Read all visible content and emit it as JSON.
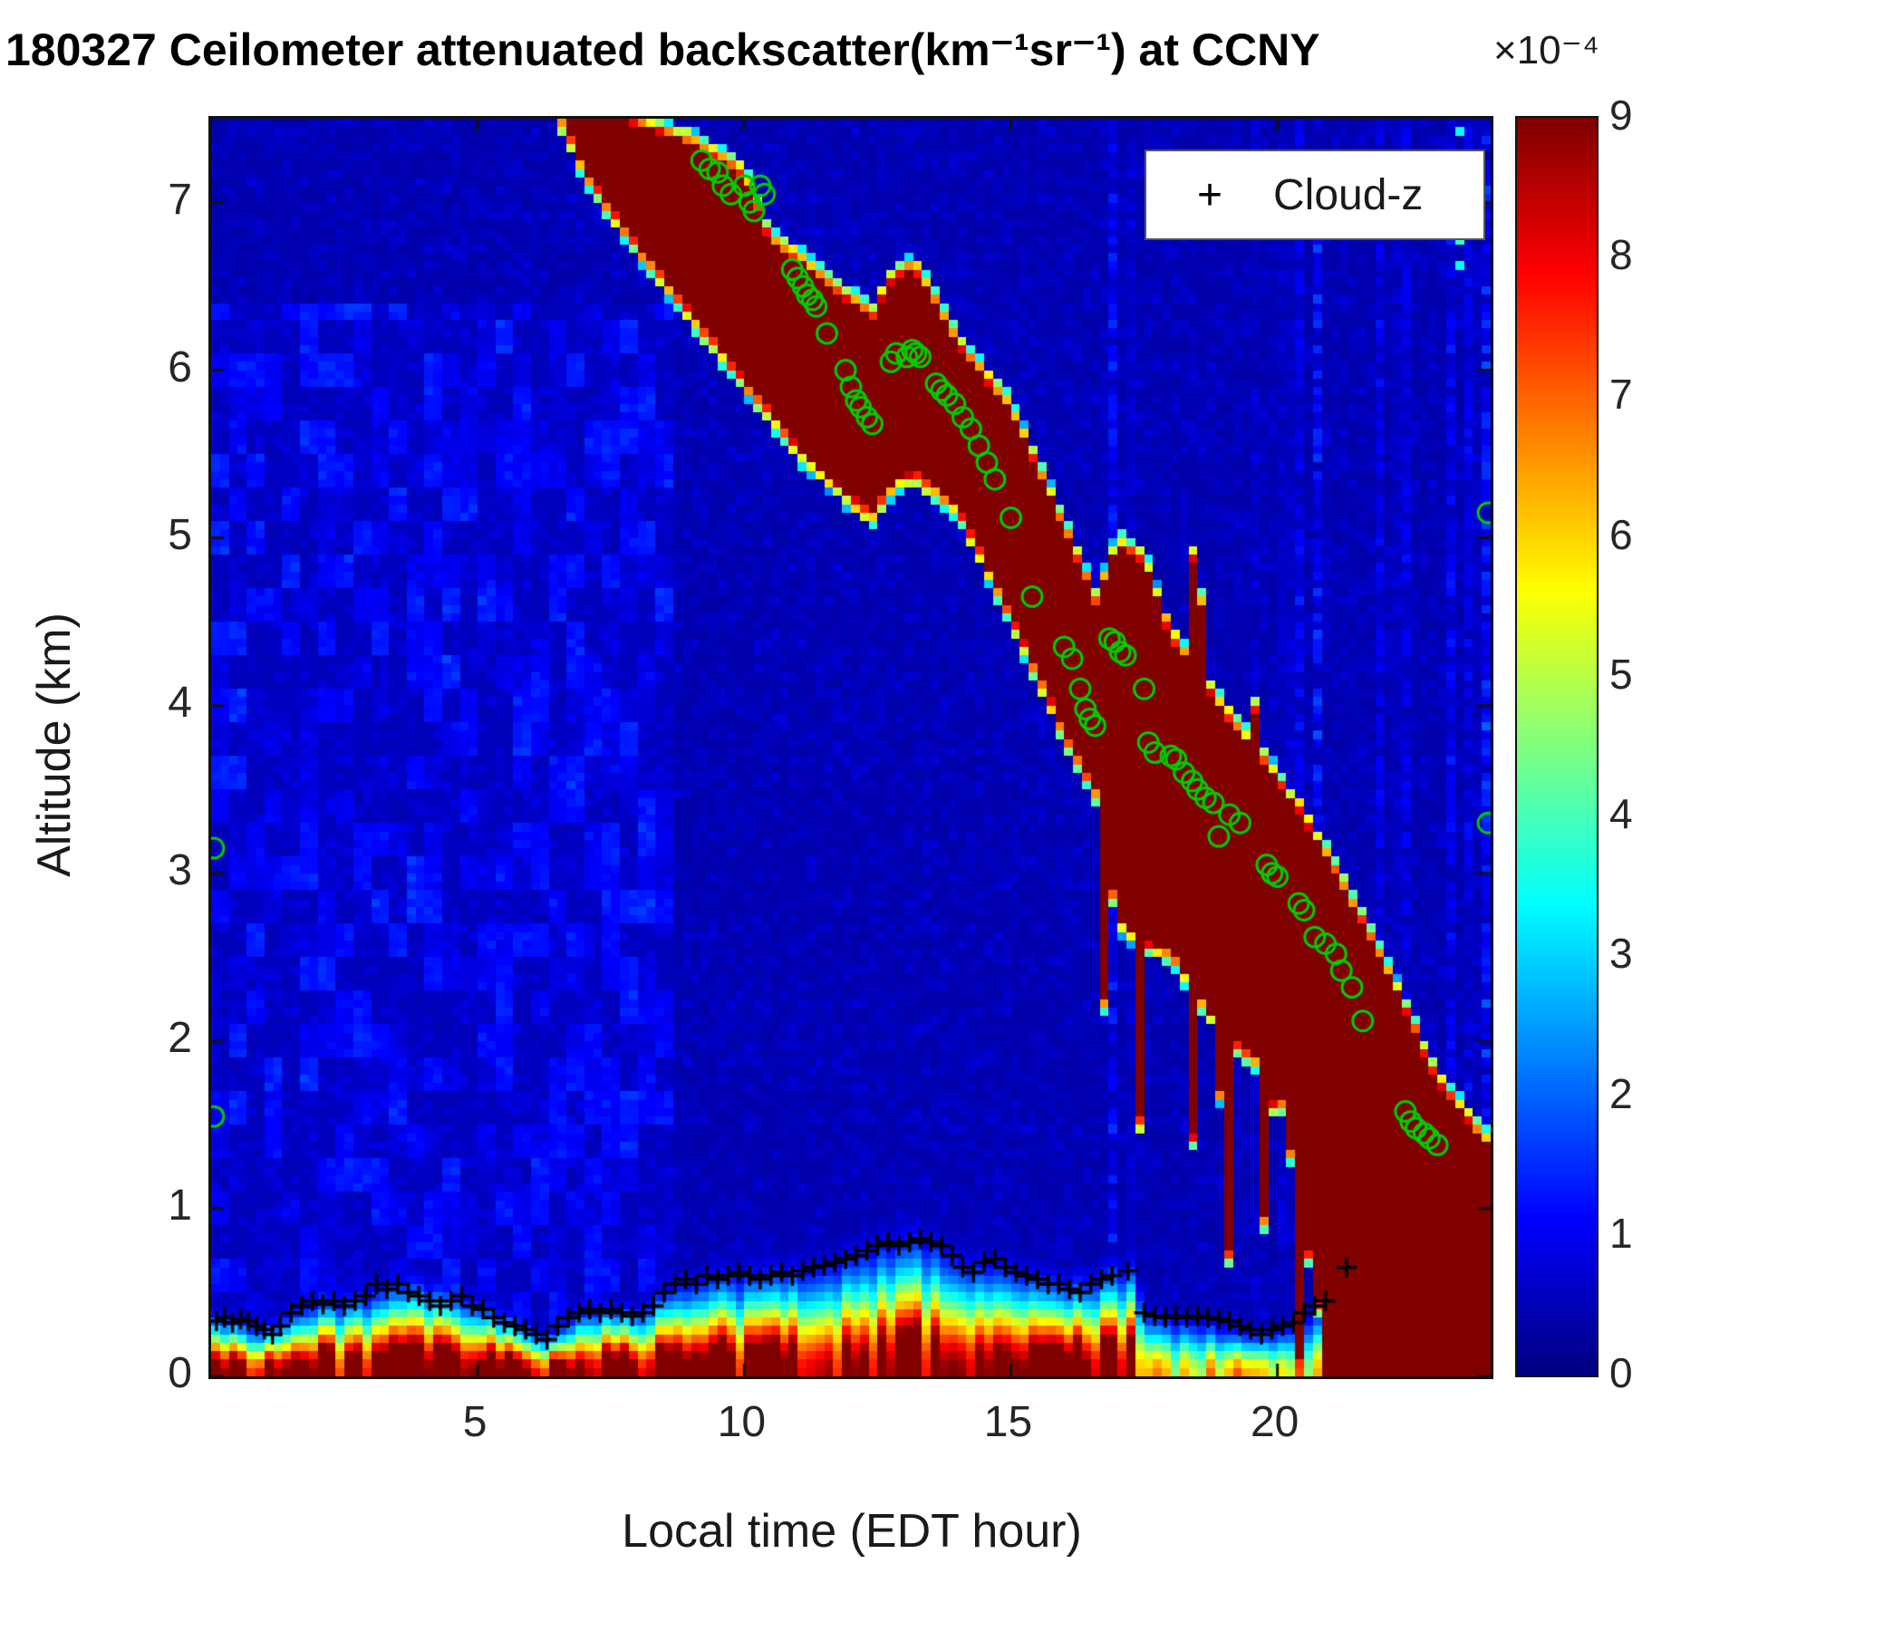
{
  "figure": {
    "title": "180327 Ceilometer attenuated backscatter(km⁻¹sr⁻¹) at CCNY",
    "colorbar_scale_label": "×10⁻⁴",
    "xlabel": "Local time (EDT hour)",
    "ylabel": "Altitude (km)"
  },
  "legend": {
    "marker": "+",
    "label": "Cloud-z"
  },
  "chart_data": {
    "type": "heatmap",
    "title": "180327 Ceilometer attenuated backscatter(km⁻¹sr⁻¹) at CCNY",
    "xlabel": "Local time (EDT hour)",
    "ylabel": "Altitude (km)",
    "x_range": [
      0,
      24
    ],
    "y_range": [
      0,
      7.5
    ],
    "x_ticks": [
      5,
      10,
      15,
      20
    ],
    "y_ticks": [
      0,
      1,
      2,
      3,
      4,
      5,
      6,
      7
    ],
    "grid": false,
    "legend_position": "top-right-inside",
    "colorbar": {
      "range": [
        0,
        9
      ],
      "ticks": [
        0,
        1,
        2,
        3,
        4,
        5,
        6,
        7,
        8,
        9
      ],
      "scale_label": "×10⁻⁴",
      "colormap": "jet"
    },
    "background_value": 0.5,
    "cloud_band": {
      "comment": "descending optically-thick cloud layer, saturated backscatter value 9e-4",
      "value": 9,
      "hours": [
        6.6,
        7.0,
        8.0,
        9.0,
        10.0,
        10.5,
        11.0,
        12.0,
        12.4,
        12.8,
        13.2,
        14.0,
        15.0,
        16.0,
        16.6,
        17.0,
        17.5,
        18.0,
        19.0,
        20.0,
        21.0,
        22.0,
        23.0,
        24.0
      ],
      "top_km": [
        7.6,
        7.6,
        7.45,
        7.35,
        7.15,
        6.75,
        6.65,
        6.4,
        6.3,
        6.55,
        6.6,
        6.15,
        5.75,
        5.05,
        4.6,
        4.95,
        4.85,
        4.4,
        3.95,
        3.55,
        3.05,
        2.45,
        1.75,
        1.35
      ],
      "bottom_km": [
        7.5,
        7.2,
        6.75,
        6.35,
        5.95,
        5.75,
        5.55,
        5.25,
        5.15,
        5.35,
        5.4,
        5.2,
        4.55,
        3.85,
        3.5,
        2.75,
        2.6,
        2.55,
        2.05,
        1.8,
        0.0,
        0.0,
        0.0,
        0.0
      ]
    },
    "boundary_layer": {
      "comment": "near-surface aerosol layer top height",
      "surface_value": 9,
      "hours": [
        0,
        1,
        2,
        3,
        3.8,
        5,
        6,
        6.4,
        7,
        8,
        8.6,
        9.5,
        10.5,
        11.5,
        12.5,
        13.4,
        14,
        15,
        16,
        16.8,
        17.3,
        17.6,
        18.5,
        19.5,
        20.2,
        20.8,
        21.4,
        22,
        24
      ],
      "height_km": [
        0.38,
        0.3,
        0.45,
        0.5,
        0.57,
        0.45,
        0.3,
        0.25,
        0.42,
        0.4,
        0.52,
        0.6,
        0.62,
        0.67,
        0.78,
        0.82,
        0.7,
        0.65,
        0.55,
        0.62,
        0.66,
        0.4,
        0.37,
        0.28,
        0.33,
        0.45,
        0.65,
        0.5,
        0.5
      ]
    },
    "cloud_z_markers": [
      [
        0.1,
        0.33
      ],
      [
        0.25,
        0.35
      ],
      [
        0.4,
        0.32
      ],
      [
        0.55,
        0.34
      ],
      [
        0.7,
        0.33
      ],
      [
        0.85,
        0.3
      ],
      [
        1.0,
        0.28
      ],
      [
        1.15,
        0.25
      ],
      [
        1.3,
        0.3
      ],
      [
        1.5,
        0.38
      ],
      [
        1.7,
        0.42
      ],
      [
        1.9,
        0.45
      ],
      [
        2.1,
        0.43
      ],
      [
        2.3,
        0.45
      ],
      [
        2.5,
        0.42
      ],
      [
        2.7,
        0.45
      ],
      [
        2.9,
        0.48
      ],
      [
        3.1,
        0.55
      ],
      [
        3.3,
        0.52
      ],
      [
        3.5,
        0.55
      ],
      [
        3.7,
        0.5
      ],
      [
        3.9,
        0.48
      ],
      [
        4.1,
        0.45
      ],
      [
        4.3,
        0.42
      ],
      [
        4.5,
        0.45
      ],
      [
        4.7,
        0.48
      ],
      [
        4.9,
        0.42
      ],
      [
        5.1,
        0.4
      ],
      [
        5.3,
        0.35
      ],
      [
        5.5,
        0.32
      ],
      [
        5.7,
        0.3
      ],
      [
        5.9,
        0.28
      ],
      [
        6.1,
        0.25
      ],
      [
        6.3,
        0.22
      ],
      [
        6.5,
        0.3
      ],
      [
        6.7,
        0.35
      ],
      [
        6.9,
        0.38
      ],
      [
        7.1,
        0.4
      ],
      [
        7.3,
        0.38
      ],
      [
        7.5,
        0.4
      ],
      [
        7.7,
        0.38
      ],
      [
        7.9,
        0.36
      ],
      [
        8.1,
        0.38
      ],
      [
        8.3,
        0.42
      ],
      [
        8.5,
        0.5
      ],
      [
        8.7,
        0.55
      ],
      [
        8.9,
        0.58
      ],
      [
        9.1,
        0.55
      ],
      [
        9.3,
        0.6
      ],
      [
        9.5,
        0.58
      ],
      [
        9.7,
        0.6
      ],
      [
        9.9,
        0.62
      ],
      [
        10.1,
        0.6
      ],
      [
        10.3,
        0.58
      ],
      [
        10.5,
        0.6
      ],
      [
        10.7,
        0.62
      ],
      [
        10.9,
        0.6
      ],
      [
        11.1,
        0.63
      ],
      [
        11.3,
        0.65
      ],
      [
        11.5,
        0.66
      ],
      [
        11.7,
        0.68
      ],
      [
        11.9,
        0.7
      ],
      [
        12.1,
        0.72
      ],
      [
        12.3,
        0.75
      ],
      [
        12.5,
        0.78
      ],
      [
        12.7,
        0.8
      ],
      [
        12.9,
        0.78
      ],
      [
        13.1,
        0.8
      ],
      [
        13.3,
        0.82
      ],
      [
        13.5,
        0.8
      ],
      [
        13.7,
        0.78
      ],
      [
        13.9,
        0.72
      ],
      [
        14.1,
        0.65
      ],
      [
        14.3,
        0.62
      ],
      [
        14.5,
        0.68
      ],
      [
        14.7,
        0.7
      ],
      [
        14.9,
        0.65
      ],
      [
        15.1,
        0.62
      ],
      [
        15.3,
        0.6
      ],
      [
        15.5,
        0.58
      ],
      [
        15.7,
        0.55
      ],
      [
        15.9,
        0.55
      ],
      [
        16.1,
        0.52
      ],
      [
        16.3,
        0.5
      ],
      [
        16.5,
        0.55
      ],
      [
        16.7,
        0.58
      ],
      [
        16.9,
        0.6
      ],
      [
        17.2,
        0.63
      ],
      [
        17.5,
        0.38
      ],
      [
        17.7,
        0.36
      ],
      [
        17.9,
        0.35
      ],
      [
        18.1,
        0.36
      ],
      [
        18.3,
        0.35
      ],
      [
        18.5,
        0.36
      ],
      [
        18.7,
        0.35
      ],
      [
        18.9,
        0.34
      ],
      [
        19.1,
        0.33
      ],
      [
        19.3,
        0.3
      ],
      [
        19.5,
        0.28
      ],
      [
        19.7,
        0.25
      ],
      [
        19.9,
        0.28
      ],
      [
        20.1,
        0.3
      ],
      [
        20.3,
        0.32
      ],
      [
        20.5,
        0.38
      ],
      [
        20.7,
        0.42
      ],
      [
        20.9,
        0.45
      ],
      [
        21.3,
        0.65
      ]
    ],
    "cloud_top_circles": [
      [
        0.05,
        3.15
      ],
      [
        0.05,
        1.55
      ],
      [
        9.2,
        7.25
      ],
      [
        9.35,
        7.2
      ],
      [
        9.5,
        7.18
      ],
      [
        9.6,
        7.1
      ],
      [
        9.75,
        7.05
      ],
      [
        10.0,
        7.1
      ],
      [
        10.1,
        7.0
      ],
      [
        10.18,
        6.95
      ],
      [
        10.3,
        7.1
      ],
      [
        10.38,
        7.05
      ],
      [
        10.9,
        6.6
      ],
      [
        11.0,
        6.55
      ],
      [
        11.1,
        6.5
      ],
      [
        11.18,
        6.45
      ],
      [
        11.28,
        6.42
      ],
      [
        11.35,
        6.38
      ],
      [
        11.55,
        6.22
      ],
      [
        11.9,
        6.0
      ],
      [
        12.0,
        5.9
      ],
      [
        12.1,
        5.82
      ],
      [
        12.18,
        5.78
      ],
      [
        12.3,
        5.72
      ],
      [
        12.4,
        5.68
      ],
      [
        12.75,
        6.05
      ],
      [
        12.85,
        6.1
      ],
      [
        13.05,
        6.08
      ],
      [
        13.15,
        6.12
      ],
      [
        13.22,
        6.1
      ],
      [
        13.3,
        6.08
      ],
      [
        13.6,
        5.92
      ],
      [
        13.7,
        5.88
      ],
      [
        13.8,
        5.85
      ],
      [
        13.95,
        5.8
      ],
      [
        14.1,
        5.72
      ],
      [
        14.25,
        5.65
      ],
      [
        14.4,
        5.55
      ],
      [
        14.55,
        5.45
      ],
      [
        14.7,
        5.35
      ],
      [
        15.0,
        5.12
      ],
      [
        15.4,
        4.65
      ],
      [
        16.0,
        4.35
      ],
      [
        16.15,
        4.28
      ],
      [
        16.3,
        4.1
      ],
      [
        16.4,
        3.98
      ],
      [
        16.48,
        3.92
      ],
      [
        16.58,
        3.88
      ],
      [
        16.85,
        4.4
      ],
      [
        16.95,
        4.38
      ],
      [
        17.05,
        4.32
      ],
      [
        17.15,
        4.3
      ],
      [
        17.5,
        4.1
      ],
      [
        17.58,
        3.78
      ],
      [
        17.7,
        3.72
      ],
      [
        18.0,
        3.7
      ],
      [
        18.1,
        3.68
      ],
      [
        18.25,
        3.6
      ],
      [
        18.4,
        3.55
      ],
      [
        18.5,
        3.5
      ],
      [
        18.65,
        3.45
      ],
      [
        18.8,
        3.42
      ],
      [
        18.9,
        3.22
      ],
      [
        19.1,
        3.35
      ],
      [
        19.3,
        3.3
      ],
      [
        19.8,
        3.05
      ],
      [
        19.9,
        3.0
      ],
      [
        20.0,
        2.98
      ],
      [
        20.4,
        2.82
      ],
      [
        20.5,
        2.78
      ],
      [
        20.7,
        2.62
      ],
      [
        20.9,
        2.58
      ],
      [
        21.1,
        2.52
      ],
      [
        21.2,
        2.42
      ],
      [
        21.4,
        2.32
      ],
      [
        21.6,
        2.12
      ],
      [
        22.4,
        1.58
      ],
      [
        22.5,
        1.52
      ],
      [
        22.6,
        1.48
      ],
      [
        22.75,
        1.45
      ],
      [
        22.85,
        1.42
      ],
      [
        23.0,
        1.38
      ],
      [
        23.95,
        5.15
      ],
      [
        23.95,
        3.3
      ]
    ],
    "marker_colors": {
      "plus": "#000000",
      "circle": "#00cc00"
    }
  }
}
